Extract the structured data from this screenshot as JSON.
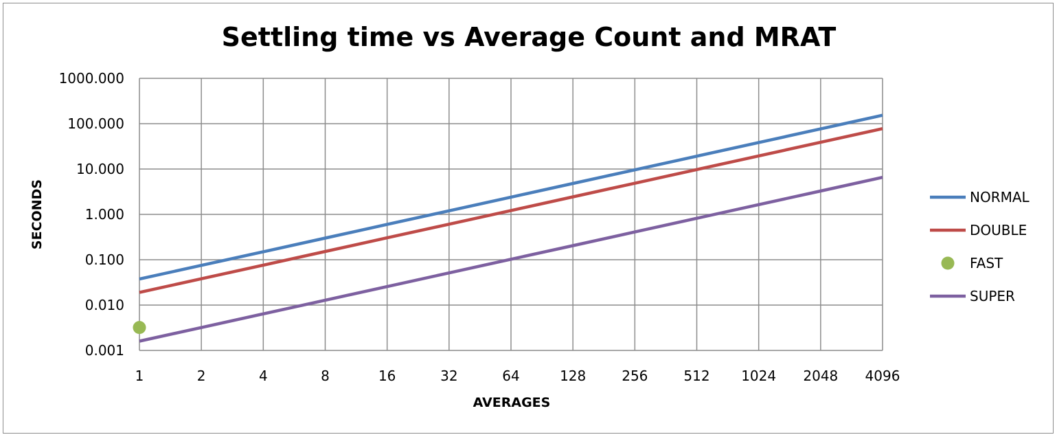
{
  "chart_data": {
    "type": "line",
    "title": "Settling time vs Average Count and MRAT",
    "xlabel": "AVERAGES",
    "ylabel": "SECONDS",
    "x_scale": "log2",
    "y_scale": "log10",
    "categories": [
      "1",
      "2",
      "4",
      "8",
      "16",
      "32",
      "64",
      "128",
      "256",
      "512",
      "1024",
      "2048",
      "4096"
    ],
    "x": [
      1,
      2,
      4,
      8,
      16,
      32,
      64,
      128,
      256,
      512,
      1024,
      2048,
      4096
    ],
    "yticks": [
      "0.001",
      "0.010",
      "0.100",
      "1.000",
      "10.000",
      "100.000",
      "1000.000"
    ],
    "ylim": [
      0.001,
      1000
    ],
    "xlim": [
      1,
      4096
    ],
    "grid": true,
    "legend_position": "right",
    "series": [
      {
        "name": "NORMAL",
        "kind": "line",
        "color": "#4a7ebb",
        "x": [
          1,
          2,
          4,
          8,
          16,
          32,
          64,
          128,
          256,
          512,
          1024,
          2048,
          4096
        ],
        "values": [
          0.0375,
          0.075,
          0.15,
          0.3,
          0.6,
          1.2,
          2.4,
          4.8,
          9.6,
          19.2,
          38.4,
          76.8,
          153.6
        ]
      },
      {
        "name": "DOUBLE",
        "kind": "line",
        "color": "#be4b48",
        "x": [
          1,
          2,
          4,
          8,
          16,
          32,
          64,
          128,
          256,
          512,
          1024,
          2048,
          4096
        ],
        "values": [
          0.019,
          0.038,
          0.076,
          0.152,
          0.304,
          0.608,
          1.216,
          2.432,
          4.864,
          9.728,
          19.456,
          38.912,
          77.824
        ]
      },
      {
        "name": "FAST",
        "kind": "marker",
        "color": "#98b954",
        "x": [
          1
        ],
        "values": [
          0.0032
        ]
      },
      {
        "name": "SUPER",
        "kind": "line",
        "color": "#7d60a0",
        "x": [
          1,
          2,
          4,
          8,
          16,
          32,
          64,
          128,
          256,
          512,
          1024,
          2048,
          4096
        ],
        "values": [
          0.0016,
          0.0032,
          0.0064,
          0.0128,
          0.0256,
          0.0512,
          0.1024,
          0.2048,
          0.4096,
          0.8192,
          1.6384,
          3.2768,
          6.5536
        ]
      }
    ]
  }
}
